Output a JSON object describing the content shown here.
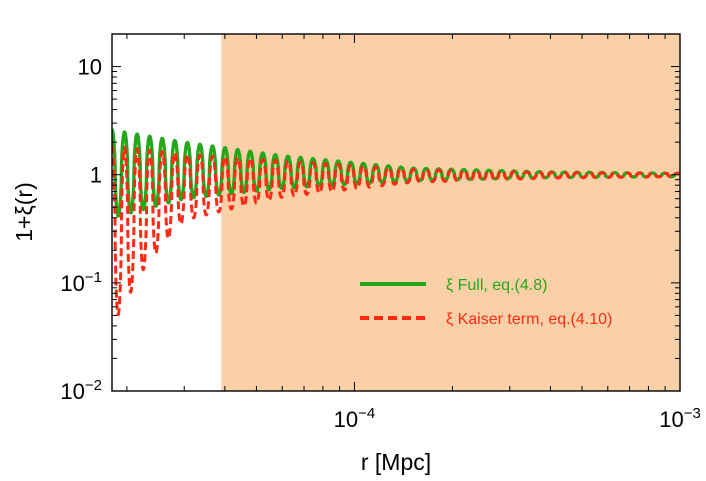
{
  "chart_data": {
    "type": "line",
    "title": "",
    "xlabel": "r [Mpc]",
    "ylabel": "1+ξ(r)",
    "x_scale": "log",
    "y_scale": "log",
    "xlim": [
      1.8e-05,
      0.001
    ],
    "ylim": [
      0.01,
      20
    ],
    "x_ticks": [
      {
        "value": 0.0001,
        "base": "10",
        "exp": "−4"
      },
      {
        "value": 0.001,
        "base": "10",
        "exp": "−3"
      }
    ],
    "y_ticks": [
      {
        "value": 0.01,
        "base": "10",
        "exp": "−2"
      },
      {
        "value": 0.1,
        "base": "10",
        "exp": "−1"
      },
      {
        "value": 1,
        "base": "1",
        "exp": ""
      },
      {
        "value": 10,
        "base": "10",
        "exp": ""
      }
    ],
    "shaded_region": {
      "x_start": 3.9e-05,
      "x_end": 0.001,
      "color": "#fbd0a6"
    },
    "grid": false,
    "legend_position": "center-right",
    "series": [
      {
        "name": "ξ Full, eq.(4.8)",
        "color": "#22a81a",
        "style": "solid",
        "period_at_xmin": 1.6e-06,
        "envelope": [
          [
            1.8e-05,
            2.6,
            0.4
          ],
          [
            3e-05,
            2.0,
            0.6
          ],
          [
            6e-05,
            1.5,
            0.75
          ],
          [
            0.00015,
            1.15,
            0.88
          ],
          [
            0.0004,
            1.06,
            0.94
          ],
          [
            0.001,
            1.03,
            0.96
          ]
        ]
      },
      {
        "name": "ξ Kaiser term, eq.(4.10)",
        "color": "#ff2a14",
        "style": "dashed",
        "period_at_xmin": 1.6e-06,
        "envelope": [
          [
            1.8e-05,
            1.85,
            0.04
          ],
          [
            2.3e-05,
            1.7,
            0.15
          ],
          [
            3e-05,
            1.55,
            0.38
          ],
          [
            6e-05,
            1.35,
            0.62
          ],
          [
            0.00015,
            1.12,
            0.85
          ],
          [
            0.0004,
            1.05,
            0.93
          ],
          [
            0.001,
            1.03,
            0.96
          ]
        ]
      }
    ]
  }
}
